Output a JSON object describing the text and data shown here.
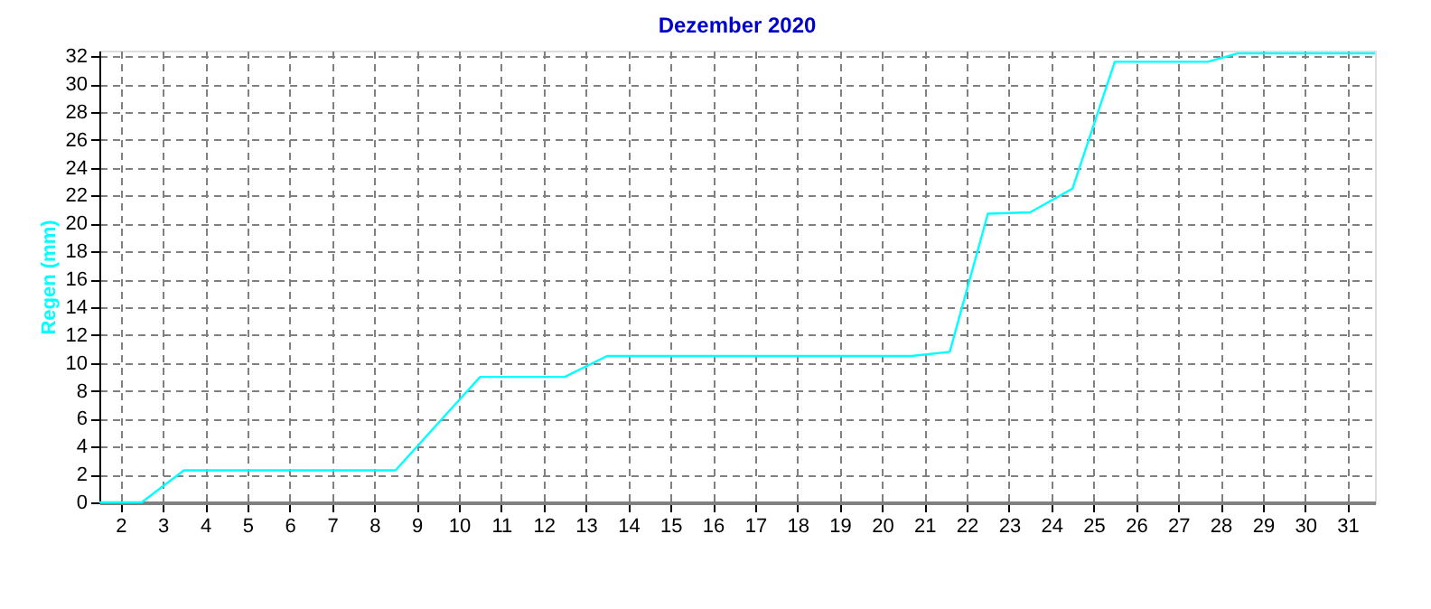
{
  "chart_data": {
    "type": "line",
    "title": "Dezember 2020",
    "ylabel": "Regen  (mm)",
    "x": [
      1.5,
      2.5,
      3.5,
      8.5,
      10.5,
      12.5,
      13.5,
      20.7,
      21.6,
      22.5,
      23.5,
      24.5,
      25.5,
      27.7,
      28.4,
      31.65
    ],
    "series": [
      {
        "color": "#00ffff",
        "values": [
          0,
          0,
          2.3,
          2.3,
          9,
          9,
          10.5,
          10.5,
          10.8,
          20.7,
          20.8,
          22.5,
          31.6,
          31.6,
          32.2,
          32.2
        ]
      }
    ],
    "xlim": [
      1.5,
      31.65
    ],
    "ylim": [
      0,
      32.4
    ],
    "xticks": [
      2,
      3,
      4,
      5,
      6,
      7,
      8,
      9,
      10,
      11,
      12,
      13,
      14,
      15,
      16,
      17,
      18,
      19,
      20,
      21,
      22,
      23,
      24,
      25,
      26,
      27,
      28,
      29,
      30,
      31
    ],
    "yticks": [
      0,
      2,
      4,
      6,
      8,
      10,
      12,
      14,
      16,
      18,
      20,
      22,
      24,
      26,
      28,
      30,
      32
    ],
    "grid": true,
    "marker": "none",
    "line_style": "solid"
  }
}
